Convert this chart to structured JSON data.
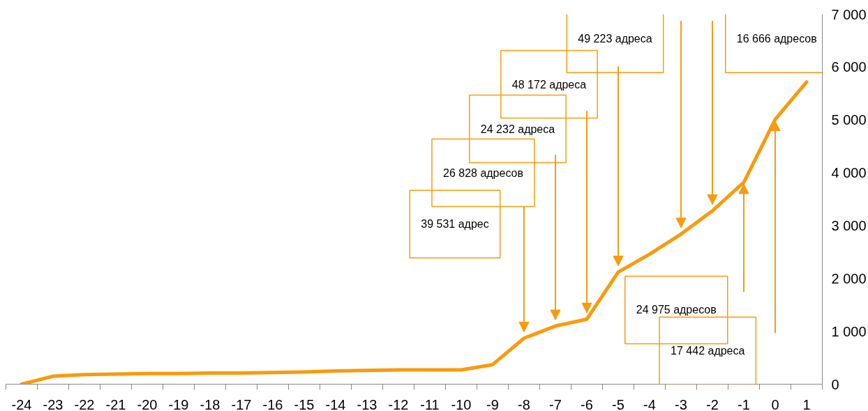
{
  "chart_data": {
    "type": "line",
    "categories": [
      "-24",
      "-23",
      "-22",
      "-21",
      "-20",
      "-19",
      "-18",
      "-17",
      "-16",
      "-15",
      "-14",
      "-13",
      "-12",
      "-11",
      "-10",
      "-9",
      "-8",
      "-7",
      "-6",
      "-5",
      "-4",
      "-3",
      "-2",
      "-1",
      "0",
      "1"
    ],
    "series": [
      {
        "color": "#f99b0c",
        "values": [
          0,
          150,
          180,
          190,
          200,
          200,
          210,
          210,
          220,
          230,
          250,
          260,
          270,
          270,
          270,
          370,
          870,
          1100,
          1230,
          2120,
          2460,
          2840,
          3280,
          3820,
          5010,
          5720
        ]
      }
    ],
    "ylim": [
      0,
      7000
    ],
    "yticks": [
      {
        "value": 0,
        "label": "0"
      },
      {
        "value": 1000,
        "label": "1 000"
      },
      {
        "value": 2000,
        "label": "2 000"
      },
      {
        "value": 3000,
        "label": "3 000"
      },
      {
        "value": 4000,
        "label": "4 000"
      },
      {
        "value": 5000,
        "label": "5 000"
      },
      {
        "value": 6000,
        "label": "6 000"
      },
      {
        "value": 7000,
        "label": "7 000"
      }
    ],
    "annotations": [
      "39 531 адрес",
      "26 828 адресов",
      "24 232 адреса",
      "48 172 адреса",
      "49 223 адреса",
      "16 666 адресов",
      "24 975 адресов",
      "17 442 адреса"
    ],
    "grid": false
  }
}
